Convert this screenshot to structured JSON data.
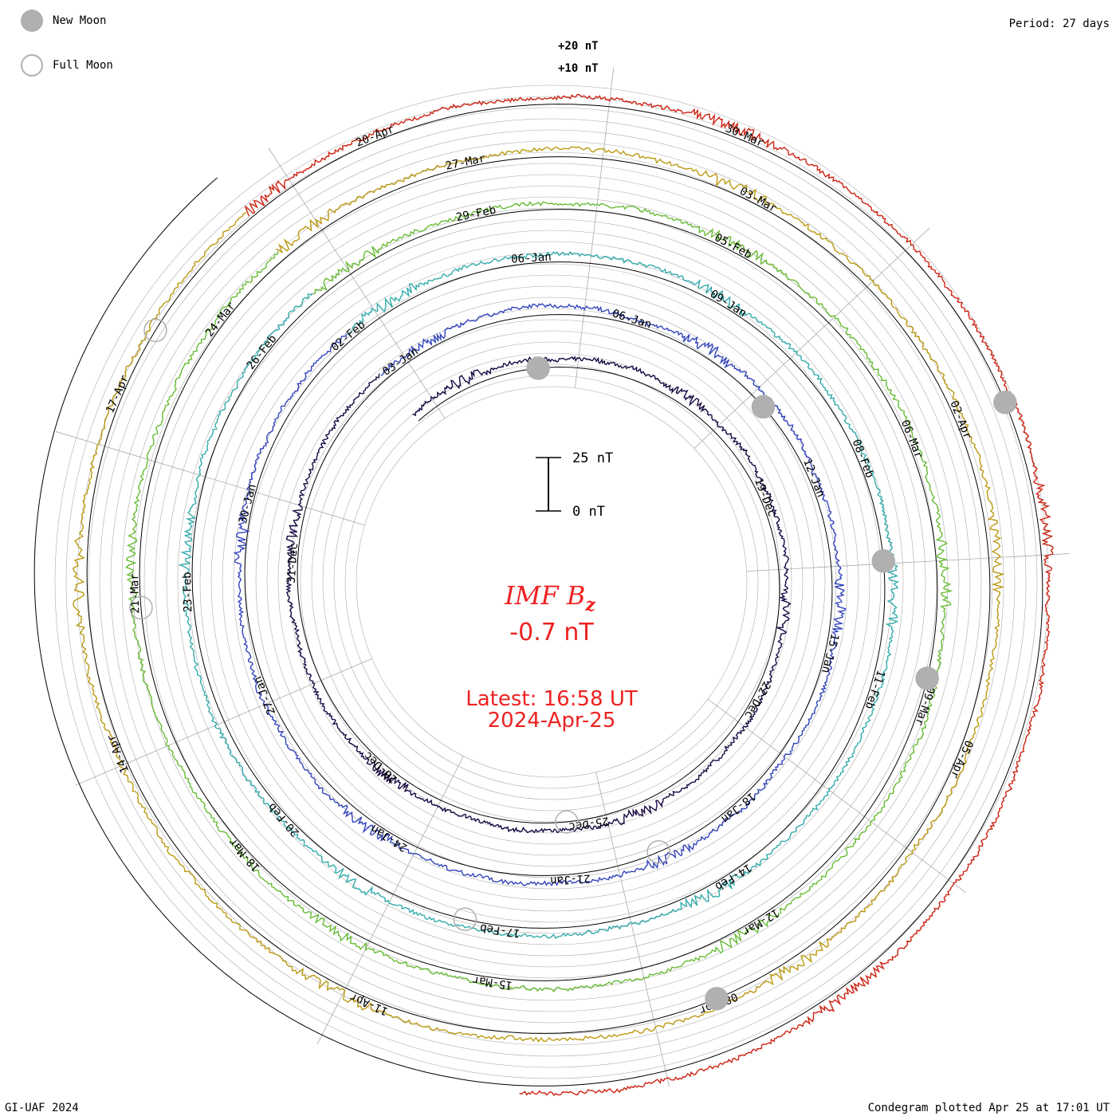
{
  "legend": {
    "new_moon": "New Moon",
    "full_moon": "Full Moon"
  },
  "period": "Period: 27 days",
  "footer": {
    "left": "GI-UAF 2024",
    "right": "Condegram plotted Apr 25 at 17:01 UT"
  },
  "scale": {
    "top": "+20 nT",
    "mid": "+10 nT",
    "bar_top": "25 nT",
    "bar_bottom": "0 nT"
  },
  "center": {
    "title_main": "IMF B",
    "title_sub": "z",
    "value": "-0.7 nT",
    "latest": "Latest: 16:58 UT",
    "date": "2024-Apr-25"
  },
  "colors": {
    "title": "#ee2222",
    "moon": "#b0b0b0",
    "grid": "#aaaaaa",
    "rings": [
      "#1a0a44",
      "#3344bb",
      "#33aaaa",
      "#66bb33",
      "#bb9911",
      "#cc2211"
    ]
  },
  "chart_data": {
    "type": "line",
    "title": "IMF Bz",
    "period_days": 27,
    "ring_date_labels": [
      [
        "19-Dec",
        "22-Dec",
        "25-Dec",
        "28-Dec",
        "31-Dec",
        "03-Jan",
        "06-Jan"
      ],
      [
        "12-Jan",
        "15-Jan",
        "18-Jan",
        "21-Jan",
        "24-Jan",
        "27-Jan",
        "30-Jan",
        "02-Feb",
        "06-Jan",
        "09-Jan"
      ],
      [
        "08-Feb",
        "11-Feb",
        "14-Feb",
        "17-Feb",
        "20-Feb",
        "23-Feb",
        "26-Feb",
        "29-Feb",
        "05-Feb"
      ],
      [
        "06-Mar",
        "09-Mar",
        "12-Mar",
        "15-Mar",
        "18-Mar",
        "21-Mar",
        "24-Mar",
        "27-Mar",
        "03-Mar"
      ],
      [
        "02-Apr",
        "05-Apr",
        "08-Apr",
        "11-Apr",
        "14-Apr",
        "17-Apr",
        "20-Apr",
        "30-Mar"
      ]
    ],
    "latest_value_nT": -0.7,
    "latest_time": "16:58 UT",
    "latest_date": "2024-Apr-25"
  }
}
